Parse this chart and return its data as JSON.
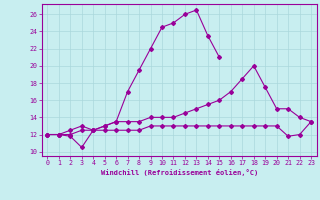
{
  "xlabel": "Windchill (Refroidissement éolien,°C)",
  "background_color": "#c8eef0",
  "grid_color": "#aad8dc",
  "line_color": "#990099",
  "xlim_min": -0.5,
  "xlim_max": 23.5,
  "ylim_min": 9.5,
  "ylim_max": 27.2,
  "xticks": [
    0,
    1,
    2,
    3,
    4,
    5,
    6,
    7,
    8,
    9,
    10,
    11,
    12,
    13,
    14,
    15,
    16,
    17,
    18,
    19,
    20,
    21,
    22,
    23
  ],
  "yticks": [
    10,
    12,
    14,
    16,
    18,
    20,
    22,
    24,
    26
  ],
  "x_all": [
    0,
    1,
    2,
    3,
    4,
    5,
    6,
    7,
    8,
    9,
    10,
    11,
    12,
    13,
    14,
    15,
    16,
    17,
    18,
    19,
    20,
    21,
    22,
    23
  ],
  "y_top": [
    12.0,
    12.0,
    12.0,
    12.5,
    12.5,
    13.0,
    13.5,
    17.0,
    19.5,
    22.0,
    24.5,
    25.0,
    26.0,
    26.5,
    23.5,
    21.0,
    null,
    null,
    null,
    null,
    null,
    null,
    null,
    null
  ],
  "y_mid": [
    12.0,
    12.0,
    12.5,
    13.0,
    12.5,
    13.0,
    13.5,
    13.5,
    13.5,
    14.0,
    14.0,
    14.0,
    14.5,
    15.0,
    15.5,
    16.0,
    17.0,
    18.5,
    20.0,
    17.5,
    15.0,
    15.0,
    14.0,
    13.5
  ],
  "y_bot": [
    12.0,
    12.0,
    11.8,
    10.5,
    12.5,
    12.5,
    12.5,
    12.5,
    12.5,
    13.0,
    13.0,
    13.0,
    13.0,
    13.0,
    13.0,
    13.0,
    13.0,
    13.0,
    13.0,
    13.0,
    13.0,
    11.8,
    12.0,
    13.5
  ],
  "xlabel_fontsize": 5.0,
  "tick_fontsize": 4.8,
  "marker_size": 2.0,
  "line_width": 0.8
}
